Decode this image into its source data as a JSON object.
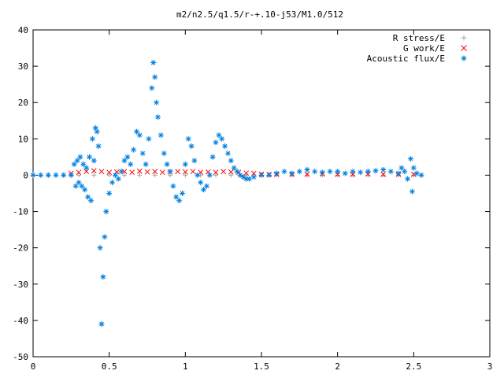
{
  "chart_data": {
    "type": "scatter",
    "title": "m2/n2.5/q1.5/r-+.10-j53/M1.0/512",
    "xlabel": "",
    "ylabel": "",
    "xlim": [
      0,
      3
    ],
    "ylim": [
      -50,
      40
    ],
    "x_ticks": [
      0,
      0.5,
      1,
      1.5,
      2,
      2.5,
      3
    ],
    "x_tick_labels": [
      "0",
      "0.5",
      "1",
      "1.5",
      "2",
      "2.5",
      "3"
    ],
    "y_ticks": [
      -50,
      -40,
      -30,
      -20,
      -10,
      0,
      10,
      20,
      30,
      40
    ],
    "y_tick_labels": [
      "-50",
      "-40",
      "-30",
      "-20",
      "-10",
      "0",
      "10",
      "20",
      "30",
      "40"
    ],
    "grid": false,
    "legend_position": "top-right",
    "series": [
      {
        "name": "R stress/E",
        "marker": "+",
        "color": "#a0a0a0",
        "x": [
          0.0,
          0.1,
          0.2,
          0.3,
          0.4,
          0.5,
          0.6,
          0.7,
          0.8,
          0.9,
          1.0,
          1.1,
          1.2,
          1.3,
          1.4,
          1.5,
          1.6,
          1.7,
          1.8,
          1.9,
          2.0,
          2.1,
          2.2,
          2.3,
          2.4,
          2.5,
          2.55
        ],
        "y": [
          0,
          0,
          0,
          0,
          0,
          0,
          0,
          0,
          0,
          0,
          0,
          0,
          0,
          0,
          0,
          0,
          0,
          0,
          0,
          0,
          0,
          0,
          0,
          0,
          0,
          0,
          0
        ]
      },
      {
        "name": "G work/E",
        "marker": "x",
        "color": "#ff0000",
        "x": [
          0.25,
          0.3,
          0.35,
          0.4,
          0.45,
          0.5,
          0.55,
          0.6,
          0.65,
          0.7,
          0.75,
          0.8,
          0.85,
          0.9,
          0.95,
          1.0,
          1.05,
          1.1,
          1.15,
          1.2,
          1.25,
          1.3,
          1.35,
          1.4,
          1.45,
          1.5,
          1.55,
          1.6,
          1.7,
          1.8,
          1.9,
          2.0,
          2.1,
          2.2,
          2.3,
          2.4,
          2.5
        ],
        "y": [
          0.5,
          0.8,
          1.0,
          1.2,
          1.0,
          0.8,
          0.9,
          1.0,
          0.8,
          1.1,
          0.9,
          1.0,
          0.8,
          0.9,
          1.0,
          0.9,
          1.0,
          0.8,
          0.9,
          0.8,
          1.0,
          0.9,
          0.8,
          0.6,
          0.5,
          0.3,
          0.2,
          0.2,
          0.2,
          0.2,
          0.3,
          0.2,
          0.2,
          0.3,
          0.2,
          0.2,
          0.2
        ]
      },
      {
        "name": "Acoustic flux/E",
        "marker": "*",
        "color": "#0080e0",
        "x": [
          0.0,
          0.05,
          0.1,
          0.15,
          0.2,
          0.25,
          0.27,
          0.28,
          0.29,
          0.3,
          0.31,
          0.32,
          0.33,
          0.34,
          0.35,
          0.36,
          0.37,
          0.38,
          0.39,
          0.4,
          0.41,
          0.42,
          0.43,
          0.44,
          0.45,
          0.46,
          0.47,
          0.48,
          0.5,
          0.52,
          0.54,
          0.56,
          0.58,
          0.6,
          0.62,
          0.64,
          0.66,
          0.68,
          0.7,
          0.72,
          0.74,
          0.76,
          0.78,
          0.79,
          0.8,
          0.81,
          0.82,
          0.84,
          0.86,
          0.88,
          0.9,
          0.92,
          0.94,
          0.96,
          0.98,
          1.0,
          1.02,
          1.04,
          1.06,
          1.08,
          1.1,
          1.12,
          1.14,
          1.16,
          1.18,
          1.2,
          1.22,
          1.24,
          1.26,
          1.28,
          1.3,
          1.32,
          1.34,
          1.36,
          1.38,
          1.4,
          1.42,
          1.45,
          1.5,
          1.55,
          1.6,
          1.65,
          1.7,
          1.75,
          1.8,
          1.85,
          1.9,
          1.95,
          2.0,
          2.05,
          2.1,
          2.15,
          2.2,
          2.25,
          2.3,
          2.35,
          2.4,
          2.42,
          2.44,
          2.46,
          2.48,
          2.49,
          2.5,
          2.52,
          2.55
        ],
        "y": [
          0,
          0,
          0,
          0,
          0,
          0,
          3,
          -3,
          4,
          -2,
          5,
          -3,
          3,
          -4,
          2,
          -6,
          5,
          -7,
          10,
          4,
          13,
          12,
          8,
          -20,
          -41,
          -28,
          -17,
          -10,
          -5,
          -2,
          0,
          -1,
          1,
          4,
          5,
          3,
          7,
          12,
          11,
          6,
          3,
          10,
          24,
          31,
          27,
          20,
          16,
          11,
          6,
          3,
          1,
          -3,
          -6,
          -7,
          -5,
          3,
          10,
          8,
          4,
          0,
          -2,
          -4,
          -3,
          0,
          5,
          9,
          11,
          10,
          8,
          6,
          4,
          2,
          1,
          0,
          -0.5,
          -1,
          -1,
          -0.5,
          0,
          0,
          0.5,
          1,
          0.5,
          1,
          1.5,
          1,
          0.8,
          1,
          1,
          0.5,
          1,
          0.8,
          1,
          1.2,
          1.5,
          1,
          0.5,
          2,
          1,
          -1,
          4.5,
          -4.5,
          2,
          0.5,
          0
        ]
      }
    ]
  }
}
